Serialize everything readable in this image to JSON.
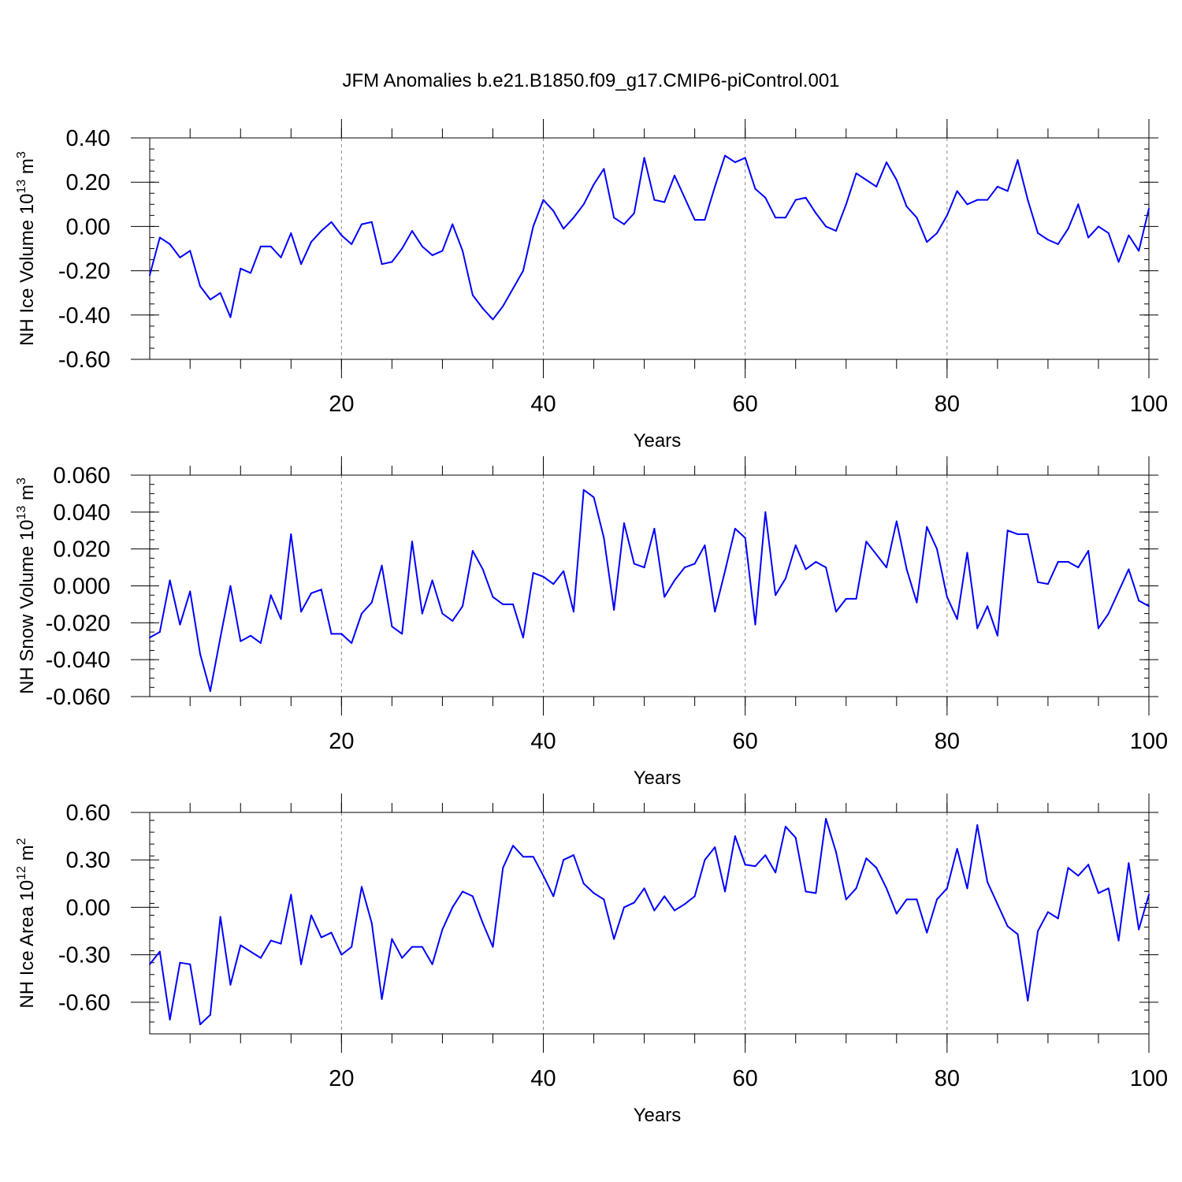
{
  "figure_title": "JFM Anomalies b.e21.B1850.f09_g17.CMIP6-piControl.001",
  "colors": {
    "line": "#0000ff",
    "axis": "#000000",
    "grid": "#888888"
  },
  "chart_data": [
    {
      "type": "line",
      "ylabel_main": "NH Ice Volume 10",
      "ylabel_exp": "13",
      "ylabel_unit": " m",
      "ylabel_unit_exp": "3",
      "xlabel": "Years",
      "xlim": [
        1,
        100
      ],
      "ylim": [
        -0.6,
        0.4
      ],
      "xticks": [
        20,
        40,
        60,
        80,
        100
      ],
      "xtick_labels": [
        "20",
        "40",
        "60",
        "80",
        "100"
      ],
      "yticks": [
        0.4,
        0.2,
        0.0,
        -0.2,
        -0.4,
        -0.6
      ],
      "ytick_labels": [
        "0.40",
        "0.20",
        "0.00",
        "-0.20",
        "-0.40",
        "-0.60"
      ],
      "grid_x": [
        20,
        40,
        60,
        80
      ],
      "series": [
        {
          "x": [
            1,
            2,
            3,
            4,
            5,
            6,
            7,
            8,
            9,
            10,
            11,
            12,
            13,
            14,
            15,
            16,
            17,
            18,
            19,
            20,
            21,
            22,
            23,
            24,
            25,
            26,
            27,
            28,
            29,
            30,
            31,
            32,
            33,
            34,
            35,
            36,
            37,
            38,
            39,
            40,
            41,
            42,
            43,
            44,
            45,
            46,
            47,
            48,
            49,
            50,
            51,
            52,
            53,
            54,
            55,
            56,
            57,
            58,
            59,
            60,
            61,
            62,
            63,
            64,
            65,
            66,
            67,
            68,
            69,
            70,
            71,
            72,
            73,
            74,
            75,
            76,
            77,
            78,
            79,
            80,
            81,
            82,
            83,
            84,
            85,
            86,
            87,
            88,
            89,
            90,
            91,
            92,
            93,
            94,
            95,
            96,
            97,
            98,
            99,
            100
          ],
          "values": [
            -0.22,
            -0.05,
            -0.08,
            -0.14,
            -0.11,
            -0.27,
            -0.33,
            -0.3,
            -0.41,
            -0.19,
            -0.21,
            -0.09,
            -0.09,
            -0.14,
            -0.03,
            -0.17,
            -0.07,
            -0.02,
            0.02,
            -0.04,
            -0.08,
            0.01,
            0.02,
            -0.17,
            -0.16,
            -0.1,
            -0.02,
            -0.09,
            -0.13,
            -0.11,
            0.01,
            -0.11,
            -0.31,
            -0.37,
            -0.42,
            -0.36,
            -0.28,
            -0.2,
            0.0,
            0.12,
            0.07,
            -0.01,
            0.04,
            0.1,
            0.19,
            0.26,
            0.04,
            0.01,
            0.06,
            0.31,
            0.12,
            0.11,
            0.23,
            0.13,
            0.03,
            0.03,
            0.18,
            0.32,
            0.29,
            0.31,
            0.17,
            0.13,
            0.04,
            0.04,
            0.12,
            0.13,
            0.06,
            0.0,
            -0.02,
            0.1,
            0.24,
            0.21,
            0.18,
            0.29,
            0.21,
            0.09,
            0.04,
            -0.07,
            -0.03,
            0.05,
            0.16,
            0.1,
            0.12,
            0.12,
            0.18,
            0.16,
            0.3,
            0.12,
            -0.03,
            -0.06,
            -0.08,
            -0.01,
            0.1,
            -0.05,
            0.0,
            -0.03,
            -0.16,
            -0.04,
            -0.11,
            0.08
          ]
        }
      ]
    },
    {
      "type": "line",
      "ylabel_main": "NH Snow Volume 10",
      "ylabel_exp": "13",
      "ylabel_unit": " m",
      "ylabel_unit_exp": "3",
      "xlabel": "Years",
      "xlim": [
        1,
        100
      ],
      "ylim": [
        -0.06,
        0.06
      ],
      "xticks": [
        20,
        40,
        60,
        80,
        100
      ],
      "xtick_labels": [
        "20",
        "40",
        "60",
        "80",
        "100"
      ],
      "yticks": [
        0.06,
        0.04,
        0.02,
        0.0,
        -0.02,
        -0.04,
        -0.06
      ],
      "ytick_labels": [
        "0.060",
        "0.040",
        "0.020",
        "0.000",
        "-0.020",
        "-0.040",
        "-0.060"
      ],
      "grid_x": [
        20,
        40,
        60,
        80
      ],
      "series": [
        {
          "x": [
            1,
            2,
            3,
            4,
            5,
            6,
            7,
            8,
            9,
            10,
            11,
            12,
            13,
            14,
            15,
            16,
            17,
            18,
            19,
            20,
            21,
            22,
            23,
            24,
            25,
            26,
            27,
            28,
            29,
            30,
            31,
            32,
            33,
            34,
            35,
            36,
            37,
            38,
            39,
            40,
            41,
            42,
            43,
            44,
            45,
            46,
            47,
            48,
            49,
            50,
            51,
            52,
            53,
            54,
            55,
            56,
            57,
            58,
            59,
            60,
            61,
            62,
            63,
            64,
            65,
            66,
            67,
            68,
            69,
            70,
            71,
            72,
            73,
            74,
            75,
            76,
            77,
            78,
            79,
            80,
            81,
            82,
            83,
            84,
            85,
            86,
            87,
            88,
            89,
            90,
            91,
            92,
            93,
            94,
            95,
            96,
            97,
            98,
            99,
            100
          ],
          "values": [
            -0.028,
            -0.025,
            0.003,
            -0.021,
            -0.003,
            -0.037,
            -0.057,
            -0.028,
            0.0,
            -0.03,
            -0.027,
            -0.031,
            -0.005,
            -0.018,
            0.028,
            -0.014,
            -0.004,
            -0.002,
            -0.026,
            -0.026,
            -0.031,
            -0.015,
            -0.009,
            0.011,
            -0.022,
            -0.026,
            0.024,
            -0.015,
            0.003,
            -0.015,
            -0.019,
            -0.011,
            0.019,
            0.009,
            -0.006,
            -0.01,
            -0.01,
            -0.028,
            0.007,
            0.005,
            0.001,
            0.008,
            -0.014,
            0.052,
            0.048,
            0.026,
            -0.013,
            0.034,
            0.012,
            0.01,
            0.031,
            -0.006,
            0.003,
            0.01,
            0.012,
            0.022,
            -0.014,
            0.008,
            0.031,
            0.026,
            -0.021,
            0.04,
            -0.005,
            0.004,
            0.022,
            0.009,
            0.013,
            0.01,
            -0.014,
            -0.007,
            -0.007,
            0.024,
            0.017,
            0.01,
            0.035,
            0.009,
            -0.009,
            0.032,
            0.02,
            -0.006,
            -0.018,
            0.018,
            -0.023,
            -0.011,
            -0.027,
            0.03,
            0.028,
            0.028,
            0.002,
            0.001,
            0.013,
            0.013,
            0.01,
            0.019,
            -0.023,
            -0.015,
            -0.003,
            0.009,
            -0.008,
            -0.011
          ]
        }
      ]
    },
    {
      "type": "line",
      "ylabel_main": "NH Ice Area 10",
      "ylabel_exp": "12",
      "ylabel_unit": " m",
      "ylabel_unit_exp": "2",
      "xlabel": "Years",
      "xlim": [
        1,
        100
      ],
      "ylim": [
        -0.8,
        0.6
      ],
      "xticks": [
        20,
        40,
        60,
        80,
        100
      ],
      "xtick_labels": [
        "20",
        "40",
        "60",
        "80",
        "100"
      ],
      "yticks": [
        0.6,
        0.3,
        0.0,
        -0.3,
        -0.6
      ],
      "ytick_labels": [
        "0.60",
        "0.30",
        "0.00",
        "-0.30",
        "-0.60"
      ],
      "grid_x": [
        20,
        40,
        60,
        80
      ],
      "series": [
        {
          "x": [
            1,
            2,
            3,
            4,
            5,
            6,
            7,
            8,
            9,
            10,
            11,
            12,
            13,
            14,
            15,
            16,
            17,
            18,
            19,
            20,
            21,
            22,
            23,
            24,
            25,
            26,
            27,
            28,
            29,
            30,
            31,
            32,
            33,
            34,
            35,
            36,
            37,
            38,
            39,
            40,
            41,
            42,
            43,
            44,
            45,
            46,
            47,
            48,
            49,
            50,
            51,
            52,
            53,
            54,
            55,
            56,
            57,
            58,
            59,
            60,
            61,
            62,
            63,
            64,
            65,
            66,
            67,
            68,
            69,
            70,
            71,
            72,
            73,
            74,
            75,
            76,
            77,
            78,
            79,
            80,
            81,
            82,
            83,
            84,
            85,
            86,
            87,
            88,
            89,
            90,
            91,
            92,
            93,
            94,
            95,
            96,
            97,
            98,
            99,
            100
          ],
          "values": [
            -0.36,
            -0.28,
            -0.71,
            -0.35,
            -0.36,
            -0.74,
            -0.68,
            -0.06,
            -0.49,
            -0.24,
            -0.28,
            -0.32,
            -0.21,
            -0.23,
            0.08,
            -0.36,
            -0.05,
            -0.19,
            -0.16,
            -0.3,
            -0.25,
            0.13,
            -0.1,
            -0.58,
            -0.2,
            -0.32,
            -0.25,
            -0.25,
            -0.36,
            -0.14,
            0.0,
            0.1,
            0.07,
            -0.1,
            -0.25,
            0.25,
            0.39,
            0.32,
            0.32,
            0.2,
            0.07,
            0.3,
            0.33,
            0.15,
            0.09,
            0.05,
            -0.2,
            0.0,
            0.03,
            0.12,
            -0.02,
            0.07,
            -0.02,
            0.02,
            0.07,
            0.3,
            0.38,
            0.1,
            0.45,
            0.27,
            0.26,
            0.33,
            0.22,
            0.51,
            0.44,
            0.1,
            0.09,
            0.56,
            0.35,
            0.05,
            0.12,
            0.31,
            0.25,
            0.12,
            -0.04,
            0.05,
            0.05,
            -0.16,
            0.05,
            0.12,
            0.37,
            0.12,
            0.52,
            0.16,
            0.02,
            -0.12,
            -0.17,
            -0.59,
            -0.15,
            -0.03,
            -0.07,
            0.25,
            0.2,
            0.27,
            0.09,
            0.12,
            -0.21,
            0.28,
            -0.14,
            0.08
          ]
        }
      ]
    }
  ]
}
